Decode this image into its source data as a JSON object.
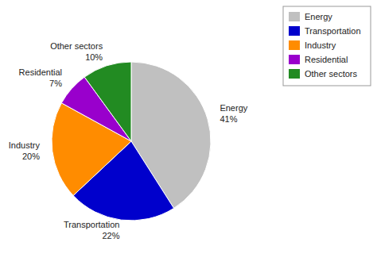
{
  "chart_data": {
    "type": "pie",
    "categories": [
      "Energy",
      "Transportation",
      "Industry",
      "Residential",
      "Other sectors"
    ],
    "values": [
      41,
      22,
      20,
      7,
      10
    ],
    "value_labels": [
      "41%",
      "22%",
      "20%",
      "7%",
      "10%"
    ],
    "colors": [
      "#C0C0C0",
      "#0000CC",
      "#FF8C00",
      "#9900CC",
      "#228B22"
    ],
    "data_labels": true,
    "legend": "upper right"
  }
}
